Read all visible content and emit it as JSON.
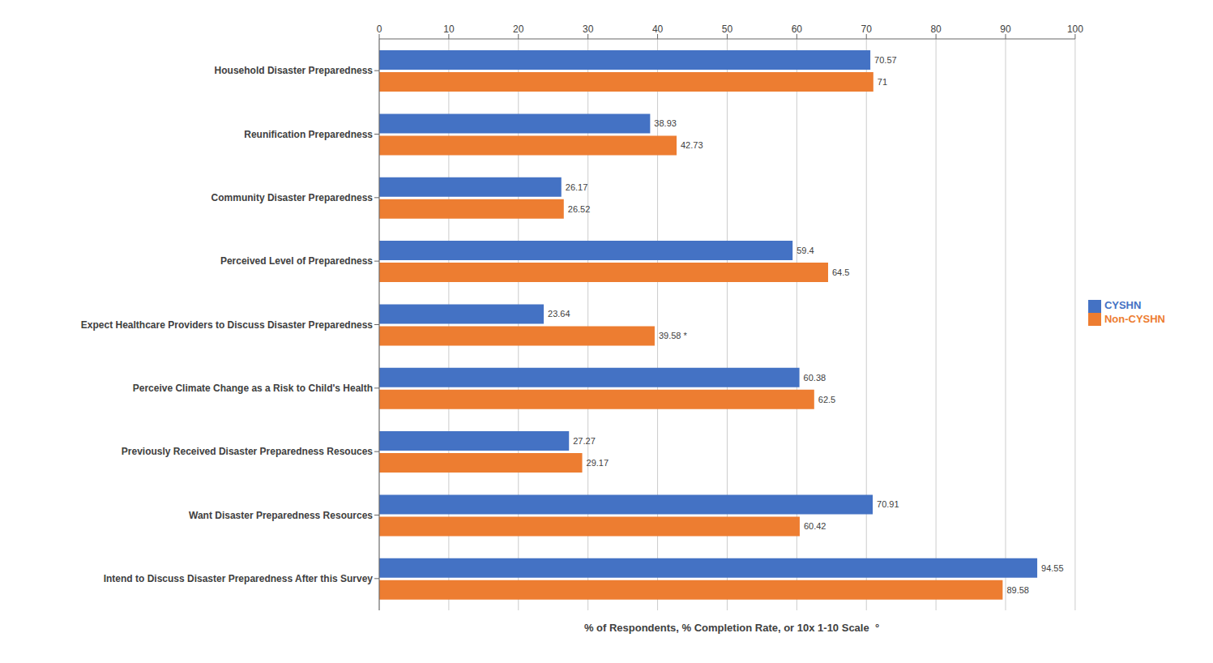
{
  "chart_data": {
    "type": "bar",
    "orientation": "horizontal",
    "categories": [
      "Household Disaster Preparedness",
      "Reunification Preparedness",
      "Community Disaster Preparedness",
      "Perceived Level of Preparedness",
      "Expect Healthcare Providers to Discuss Disaster Preparedness",
      "Perceive Climate Change as a Risk to Child's Health",
      "Previously Received Disaster Preparedness Resouces",
      "Want Disaster Preparedness Resources",
      "Intend to Discuss Disaster Preparedness After this Survey"
    ],
    "series": [
      {
        "name": "CYSHN",
        "color": "#4472C4",
        "values": [
          70.57,
          38.93,
          26.17,
          59.4,
          23.64,
          60.38,
          27.27,
          70.91,
          94.55
        ]
      },
      {
        "name": "Non-CYSHN",
        "color": "#ED7D31",
        "values": [
          71,
          42.73,
          26.52,
          64.5,
          39.58,
          62.5,
          29.17,
          60.42,
          89.58
        ],
        "value_labels": [
          "71",
          "42.73",
          "26.52",
          "64.5",
          "39.58 *",
          "62.5",
          "29.17",
          "60.42",
          "89.58"
        ]
      }
    ],
    "xlabel": "% of Respondents, % Completion Rate, or 10x 1-10 Scale  °",
    "xlim": [
      0,
      100
    ],
    "xticks": [
      0,
      10,
      20,
      30,
      40,
      50,
      60,
      70,
      80,
      90,
      100
    ],
    "grid": true,
    "legend": "right",
    "data_labels": true
  }
}
